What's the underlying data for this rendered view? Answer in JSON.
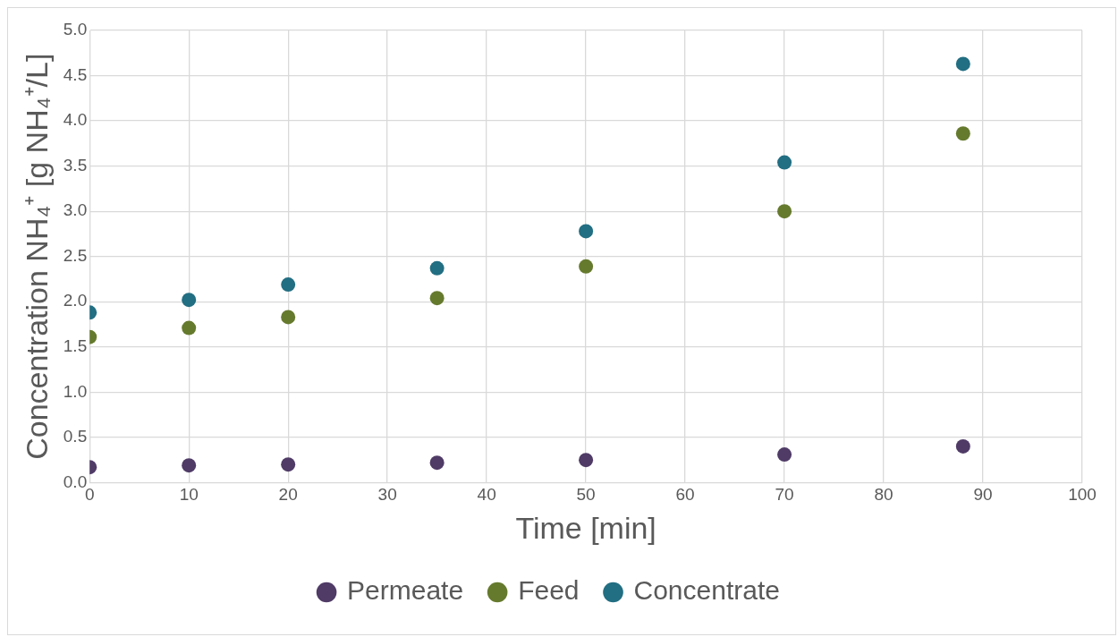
{
  "chart_data": {
    "type": "scatter",
    "xlabel": "Time [min]",
    "ylabel": "Concentration NH₄⁺ [g NH₄⁺/L]",
    "x": [
      0,
      10,
      20,
      35,
      50,
      70,
      88
    ],
    "series": [
      {
        "name": "Permeate",
        "color": "#4f3b66",
        "values": [
          0.17,
          0.19,
          0.2,
          0.22,
          0.25,
          0.31,
          0.4
        ]
      },
      {
        "name": "Feed",
        "color": "#667a2e",
        "values": [
          1.61,
          1.71,
          1.83,
          2.04,
          2.39,
          3.0,
          3.86
        ]
      },
      {
        "name": "Concentrate",
        "color": "#226e82",
        "values": [
          1.88,
          2.02,
          2.19,
          2.37,
          2.78,
          3.54,
          4.63
        ]
      }
    ],
    "xlim": [
      0,
      100
    ],
    "xticks": [
      0,
      10,
      20,
      30,
      40,
      50,
      60,
      70,
      80,
      90,
      100
    ],
    "ylim": [
      0,
      5
    ],
    "yticks": [
      {
        "value": 0,
        "label": "0.0"
      },
      {
        "value": 0.5,
        "label": "0.5"
      },
      {
        "value": 1,
        "label": "1.0"
      },
      {
        "value": 1.5,
        "label": "1.5"
      },
      {
        "value": 2,
        "label": "2.0"
      },
      {
        "value": 2.5,
        "label": "2.5"
      },
      {
        "value": 3,
        "label": "3.0"
      },
      {
        "value": 3.5,
        "label": "3.5"
      },
      {
        "value": 4,
        "label": "4.0"
      },
      {
        "value": 4.5,
        "label": "4.5"
      },
      {
        "value": 5,
        "label": "5.0"
      }
    ],
    "grid": true,
    "legend": "bottom",
    "marker": "circle"
  }
}
